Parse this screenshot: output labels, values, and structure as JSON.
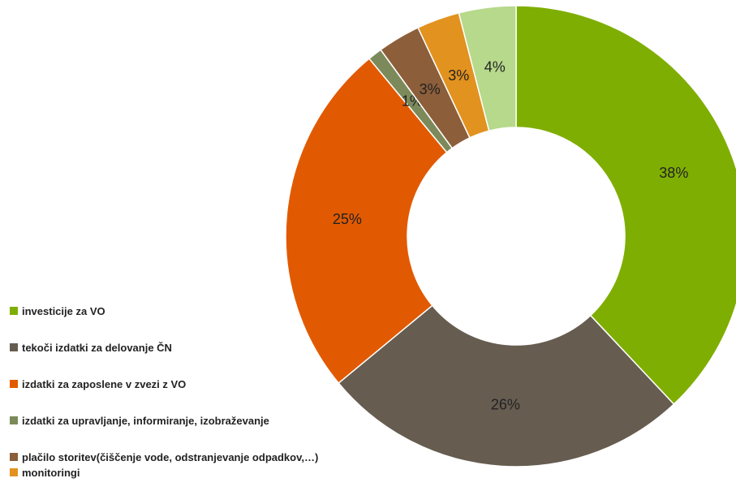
{
  "chart_data": {
    "type": "donut",
    "categories": [
      "investicije za VO",
      "tekoči izdatki za delovanje ČN",
      "izdatki za zaposlene v zvezi z VO",
      "izdatki za upravljanje, informiranje, izobraževanje",
      "plačilo storitev(čiščenje vode, odstranjevanje odpadkov,…)",
      "monitoringi",
      null
    ],
    "values": [
      38,
      26,
      25,
      1,
      3,
      3,
      4
    ],
    "value_labels": [
      "38%",
      "26%",
      "25%",
      "1%",
      "3%",
      "3%",
      "4%"
    ],
    "colors": [
      "#7fae02",
      "#665c50",
      "#e15a02",
      "#7c8a5b",
      "#8c5e3a",
      "#e2921f",
      "#b6d98b"
    ],
    "legend": "left"
  }
}
